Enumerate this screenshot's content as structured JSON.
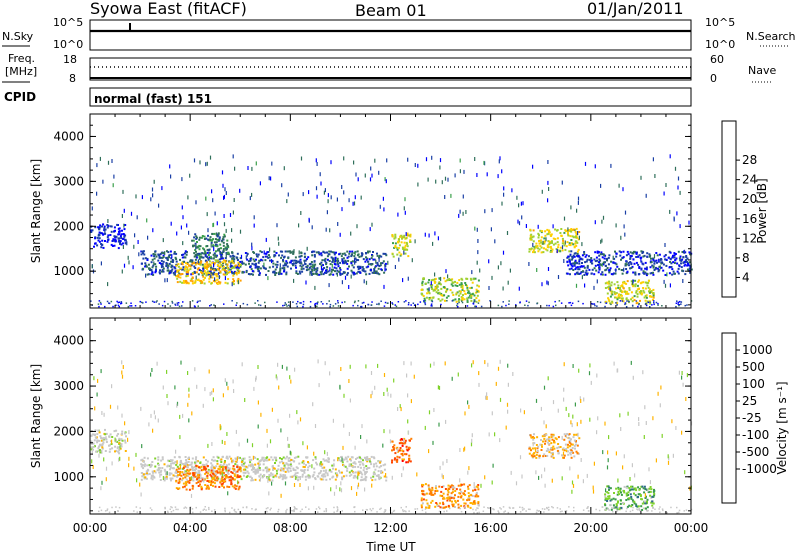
{
  "header": {
    "title_left": "Syowa East (fitACF)",
    "title_mid": "Beam 01",
    "title_right": "01/Jan/2011"
  },
  "top_panels": {
    "nsky_label": "N.Sky",
    "nsky_ticks": [
      "10^5",
      "10^0"
    ],
    "nsearch_label": "N.Search",
    "nsearch_ticks": [
      "10^5",
      "10^0"
    ],
    "freq_label": "Freq.",
    "freq_unit": "[MHz]",
    "freq_ticks": [
      "18",
      "8"
    ],
    "nave_label": "Nave",
    "nave_ticks": [
      "60",
      "0"
    ],
    "cpid_label": "CPID",
    "cpid_text": "normal (fast) 151"
  },
  "colors": {
    "power_scale": [
      "#0000ff",
      "#1a3fa5",
      "#2f6f5a",
      "#3aa04a",
      "#9fd030",
      "#ffd000",
      "#ffa000",
      "#ff6000",
      "#ff0000"
    ],
    "velocity_scale": [
      "#ff0000",
      "#ff4500",
      "#ff7f00",
      "#ffb300",
      "#c8c8c8",
      "#c8c8c8",
      "#7fd22a",
      "#3c9b4c",
      "#2d6a8a",
      "#0000b4"
    ]
  },
  "chart_data": [
    {
      "type": "heatmap",
      "title": "Power",
      "ylabel": "Slant Range [km]",
      "xlabel": "",
      "x_ticks": [
        "00:00",
        "04:00",
        "08:00",
        "12:00",
        "16:00",
        "20:00",
        "00:00"
      ],
      "x_range_hours": [
        0,
        24
      ],
      "ylim": [
        180,
        4500
      ],
      "y_ticks": [
        "1000",
        "2000",
        "3000",
        "4000"
      ],
      "colorbar": {
        "label": "Power [dB]",
        "range": [
          0,
          32
        ],
        "tick_labels": [
          "4",
          "8",
          "12",
          "16",
          "20",
          "24",
          "28"
        ]
      },
      "features": [
        {
          "start_h": 0.0,
          "end_h": 1.4,
          "range_km": 1800,
          "level": 0.08
        },
        {
          "start_h": 2.0,
          "end_h": 11.8,
          "range_km": 1200,
          "level": 0.2
        },
        {
          "start_h": 3.4,
          "end_h": 6.0,
          "range_km": 1000,
          "level": 0.62
        },
        {
          "start_h": 4.0,
          "end_h": 5.5,
          "range_km": 1600,
          "level": 0.28
        },
        {
          "start_h": 12.0,
          "end_h": 12.8,
          "range_km": 1600,
          "level": 0.55
        },
        {
          "start_h": 13.2,
          "end_h": 15.5,
          "range_km": 600,
          "level": 0.5
        },
        {
          "start_h": 17.5,
          "end_h": 19.5,
          "range_km": 1700,
          "level": 0.55
        },
        {
          "start_h": 19.0,
          "end_h": 24.0,
          "range_km": 1200,
          "level": 0.15
        },
        {
          "start_h": 20.5,
          "end_h": 22.5,
          "range_km": 550,
          "level": 0.55
        }
      ]
    },
    {
      "type": "heatmap",
      "title": "Velocity",
      "ylabel": "Slant Range [km]",
      "xlabel": "Time UT",
      "x_ticks": [
        "00:00",
        "04:00",
        "08:00",
        "12:00",
        "16:00",
        "20:00",
        "00:00"
      ],
      "x_range_hours": [
        0,
        24
      ],
      "ylim": [
        180,
        4500
      ],
      "y_ticks": [
        "1000",
        "2000",
        "3000",
        "4000"
      ],
      "colorbar": {
        "label": "Velocity [m s⁻¹]",
        "range": [
          -1250,
          1250
        ],
        "tick_labels": [
          "1000",
          "500",
          "100",
          "25",
          "-25",
          "-100",
          "-500",
          "-1000"
        ]
      },
      "features": [
        {
          "start_h": 0.0,
          "end_h": 1.4,
          "range_km": 1800,
          "level": 0.5
        },
        {
          "start_h": 2.0,
          "end_h": 11.8,
          "range_km": 1200,
          "level": 0.5
        },
        {
          "start_h": 3.4,
          "end_h": 6.0,
          "range_km": 1000,
          "level": 0.25
        },
        {
          "start_h": 12.0,
          "end_h": 12.8,
          "range_km": 1600,
          "level": 0.2
        },
        {
          "start_h": 13.2,
          "end_h": 15.5,
          "range_km": 600,
          "level": 0.3
        },
        {
          "start_h": 17.5,
          "end_h": 19.5,
          "range_km": 1700,
          "level": 0.35
        },
        {
          "start_h": 20.5,
          "end_h": 22.5,
          "range_km": 550,
          "level": 0.7
        }
      ]
    }
  ]
}
